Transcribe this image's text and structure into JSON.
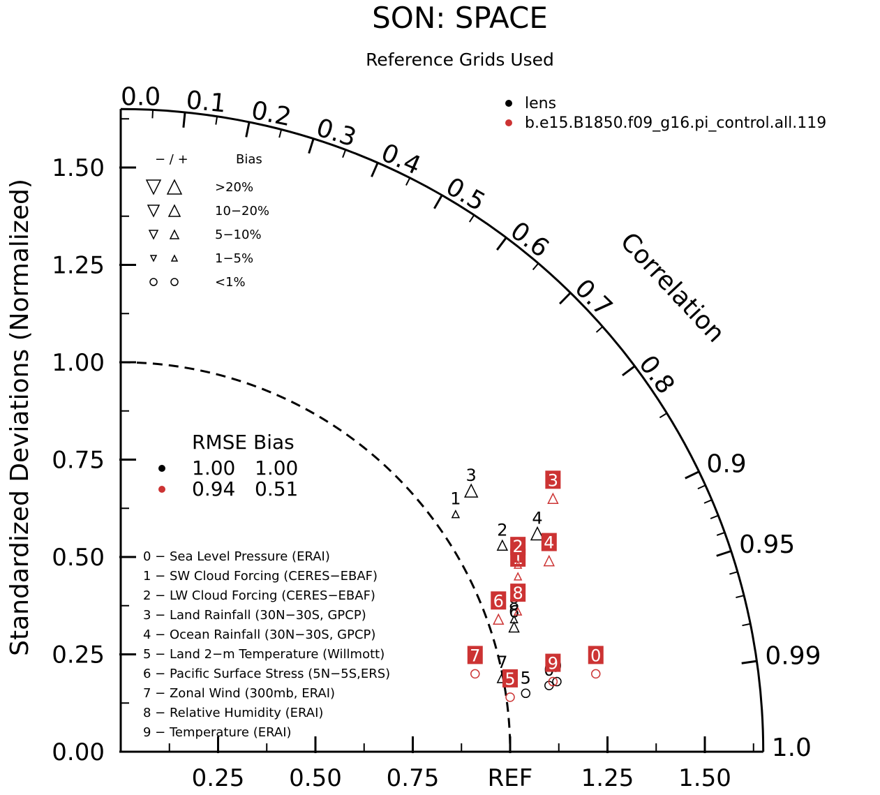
{
  "chart_data": {
    "type": "scatter",
    "subtype": "taylor-diagram",
    "title": "SON: SPACE",
    "subtitle": "Reference Grids Used",
    "ylabel": "Standardized Deviations (Normalized)",
    "xlabel": "",
    "corr_label": "Correlation",
    "ref_label": "REF",
    "std_range": [
      0,
      1.65
    ],
    "y_ticks": [
      "0.00",
      "0.25",
      "0.50",
      "0.75",
      "1.00",
      "1.25",
      "1.50"
    ],
    "x_ticks": [
      "0.25",
      "0.50",
      "0.75",
      "REF",
      "1.25",
      "1.50"
    ],
    "corr_ticks": [
      "0.0",
      "0.1",
      "0.2",
      "0.3",
      "0.4",
      "0.5",
      "0.6",
      "0.7",
      "0.8",
      "0.9",
      "0.95",
      "0.99",
      "1.0"
    ],
    "series": [
      {
        "name": "lens",
        "color": "#000000",
        "points": [
          {
            "id": "0",
            "x": 1.1,
            "y": 0.17,
            "marker": "circle"
          },
          {
            "id": "1",
            "x": 0.86,
            "y": 0.61,
            "marker": "triangle-up-small"
          },
          {
            "id": "2",
            "x": 0.98,
            "y": 0.53,
            "marker": "triangle-up-medium"
          },
          {
            "id": "3",
            "x": 0.9,
            "y": 0.67,
            "marker": "triangle-up-large"
          },
          {
            "id": "4",
            "x": 1.07,
            "y": 0.56,
            "marker": "triangle-up-large"
          },
          {
            "id": "5",
            "x": 1.04,
            "y": 0.15,
            "marker": "circle"
          },
          {
            "id": "6",
            "x": 1.01,
            "y": 0.32,
            "marker": "triangle-up-medium"
          },
          {
            "id": "7",
            "x": 0.98,
            "y": 0.19,
            "marker": "triangle-up-medium"
          },
          {
            "id": "8",
            "x": 1.01,
            "y": 0.34,
            "marker": "triangle-up-small"
          },
          {
            "id": "9",
            "x": 1.12,
            "y": 0.18,
            "marker": "circle"
          }
        ]
      },
      {
        "name": "b.e15.B1850.f09_g16.pi_control.all.119",
        "color": "#cc3333",
        "points": [
          {
            "id": "0",
            "x": 1.22,
            "y": 0.2,
            "marker": "circle"
          },
          {
            "id": "1",
            "x": 1.02,
            "y": 0.45,
            "marker": "triangle-up-small"
          },
          {
            "id": "2",
            "x": 1.02,
            "y": 0.48,
            "marker": "triangle-up-small"
          },
          {
            "id": "3",
            "x": 1.11,
            "y": 0.65,
            "marker": "triangle-up-medium"
          },
          {
            "id": "4",
            "x": 1.1,
            "y": 0.49,
            "marker": "triangle-up-medium"
          },
          {
            "id": "5",
            "x": 1.0,
            "y": 0.14,
            "marker": "circle"
          },
          {
            "id": "6",
            "x": 0.97,
            "y": 0.34,
            "marker": "triangle-up-medium"
          },
          {
            "id": "7",
            "x": 0.91,
            "y": 0.2,
            "marker": "circle"
          },
          {
            "id": "8",
            "x": 1.02,
            "y": 0.36,
            "marker": "triangle-up-small"
          },
          {
            "id": "9",
            "x": 1.11,
            "y": 0.18,
            "marker": "circle"
          }
        ]
      }
    ],
    "marker_legend": {
      "header_signs": "−  /  +",
      "header_label": "Bias",
      "rows": [
        ">20%",
        "10−20%",
        "5−10%",
        "1−5%",
        "<1%"
      ]
    },
    "stats_table": {
      "header": "RMSE Bias",
      "rows": [
        {
          "rmse": "1.00",
          "bias": "1.00",
          "color": "#000000"
        },
        {
          "rmse": "0.94",
          "bias": "0.51",
          "color": "#cc3333"
        }
      ]
    },
    "variables": [
      "0 − Sea Level Pressure (ERAI)",
      "1 − SW Cloud Forcing (CERES−EBAF)",
      "2 − LW Cloud Forcing (CERES−EBAF)",
      "3 − Land Rainfall (30N−30S, GPCP)",
      "4 − Ocean Rainfall (30N−30S, GPCP)",
      "5 − Land 2−m Temperature (Willmott)",
      "6 − Pacific Surface Stress (5N−5S,ERS)",
      "7 − Zonal Wind (300mb, ERAI)",
      "8 − Relative Humidity (ERAI)",
      "9 − Temperature (ERAI)"
    ]
  }
}
